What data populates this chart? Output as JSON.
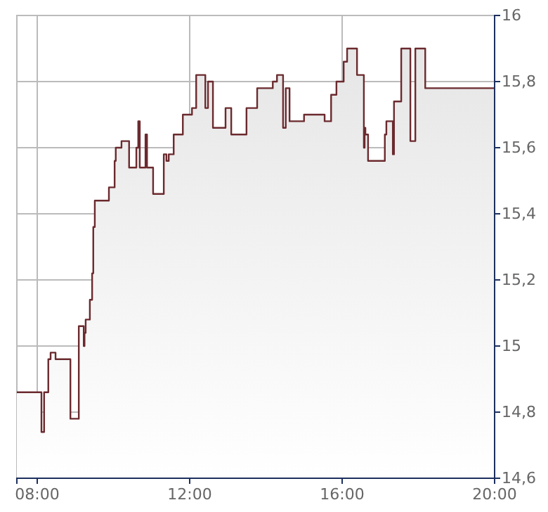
{
  "chart_data": {
    "type": "area",
    "x": [
      7.465,
      8.11,
      8.11,
      8.18,
      8.18,
      8.29,
      8.29,
      8.35,
      8.35,
      8.48,
      8.48,
      8.87,
      8.87,
      9.09,
      9.09,
      9.22,
      9.22,
      9.24,
      9.24,
      9.27,
      9.27,
      9.38,
      9.38,
      9.44,
      9.44,
      9.47,
      9.47,
      9.51,
      9.51,
      9.88,
      9.88,
      10.03,
      10.03,
      10.06,
      10.06,
      10.21,
      10.21,
      10.41,
      10.41,
      10.6,
      10.6,
      10.65,
      10.65,
      10.69,
      10.69,
      10.84,
      10.84,
      10.88,
      10.88,
      11.04,
      11.04,
      11.32,
      11.32,
      11.39,
      11.39,
      11.45,
      11.45,
      11.58,
      11.58,
      11.82,
      11.82,
      12.06,
      12.06,
      12.17,
      12.17,
      12.41,
      12.41,
      12.48,
      12.48,
      12.61,
      12.61,
      12.94,
      12.94,
      13.09,
      13.09,
      13.49,
      13.49,
      13.77,
      13.77,
      14.18,
      14.18,
      14.29,
      14.29,
      14.45,
      14.45,
      14.52,
      14.52,
      14.62,
      14.62,
      15.0,
      15.0,
      15.54,
      15.54,
      15.71,
      15.71,
      15.85,
      15.85,
      16.04,
      16.04,
      16.13,
      16.13,
      16.39,
      16.39,
      16.57,
      16.57,
      16.59,
      16.59,
      16.61,
      16.61,
      16.68,
      16.68,
      17.12,
      17.12,
      17.16,
      17.16,
      17.33,
      17.33,
      17.36,
      17.36,
      17.55,
      17.55,
      17.79,
      17.79,
      17.92,
      17.92,
      18.18,
      18.18,
      20.0
    ],
    "series": [
      {
        "color": "#6b2a2e",
        "values": [
          14.86,
          14.86,
          14.74,
          14.74,
          14.86,
          14.86,
          14.96,
          14.96,
          14.98,
          14.98,
          14.96,
          14.96,
          14.78,
          14.78,
          15.06,
          15.06,
          15.0,
          15.0,
          15.04,
          15.04,
          15.08,
          15.08,
          15.14,
          15.14,
          15.22,
          15.22,
          15.36,
          15.36,
          15.44,
          15.44,
          15.48,
          15.48,
          15.56,
          15.56,
          15.6,
          15.6,
          15.62,
          15.62,
          15.54,
          15.54,
          15.6,
          15.6,
          15.68,
          15.68,
          15.54,
          15.54,
          15.64,
          15.64,
          15.54,
          15.54,
          15.46,
          15.46,
          15.58,
          15.58,
          15.56,
          15.56,
          15.58,
          15.58,
          15.64,
          15.64,
          15.7,
          15.7,
          15.72,
          15.72,
          15.82,
          15.82,
          15.72,
          15.72,
          15.8,
          15.8,
          15.66,
          15.66,
          15.72,
          15.72,
          15.64,
          15.64,
          15.72,
          15.72,
          15.78,
          15.78,
          15.8,
          15.8,
          15.82,
          15.82,
          15.66,
          15.66,
          15.78,
          15.78,
          15.68,
          15.68,
          15.7,
          15.7,
          15.68,
          15.68,
          15.76,
          15.76,
          15.8,
          15.8,
          15.86,
          15.86,
          15.9,
          15.9,
          15.82,
          15.82,
          15.6,
          15.6,
          15.66,
          15.66,
          15.64,
          15.64,
          15.56,
          15.56,
          15.64,
          15.64,
          15.68,
          15.68,
          15.58,
          15.58,
          15.74,
          15.74,
          15.9,
          15.9,
          15.62,
          15.62,
          15.9,
          15.9,
          15.78,
          15.78
        ]
      }
    ],
    "xlim": [
      7.465,
      20
    ],
    "xticks": [
      {
        "value": 8,
        "label": "08:00"
      },
      {
        "value": 12,
        "label": "12:00"
      },
      {
        "value": 16,
        "label": "16:00"
      },
      {
        "value": 20,
        "label": "20:00"
      }
    ],
    "ylim": [
      14.6,
      16
    ],
    "yticks": [
      {
        "value": 14.6,
        "label": "14,6"
      },
      {
        "value": 14.8,
        "label": "14,8"
      },
      15,
      {
        "value": 15.2,
        "label": "15,2"
      },
      {
        "value": 15.4,
        "label": "15,4"
      },
      {
        "value": 15.6,
        "label": "15,6"
      },
      {
        "value": 15.8,
        "label": "15,8"
      },
      16
    ],
    "grid": true
  }
}
